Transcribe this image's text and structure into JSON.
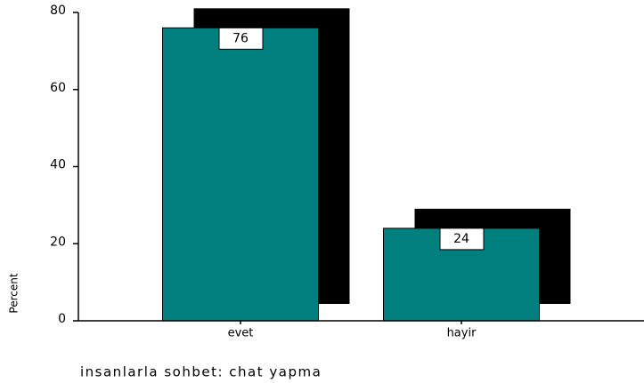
{
  "chart_data": {
    "type": "bar",
    "categories": [
      "evet",
      "hayir"
    ],
    "values": [
      76,
      24
    ],
    "color": "#007f7f",
    "ylim": [
      0,
      80
    ],
    "yticks": [
      0,
      20,
      40,
      60,
      80
    ],
    "y_label": "Percent",
    "x_label": "insanlarla sohbet: chat yapma"
  }
}
